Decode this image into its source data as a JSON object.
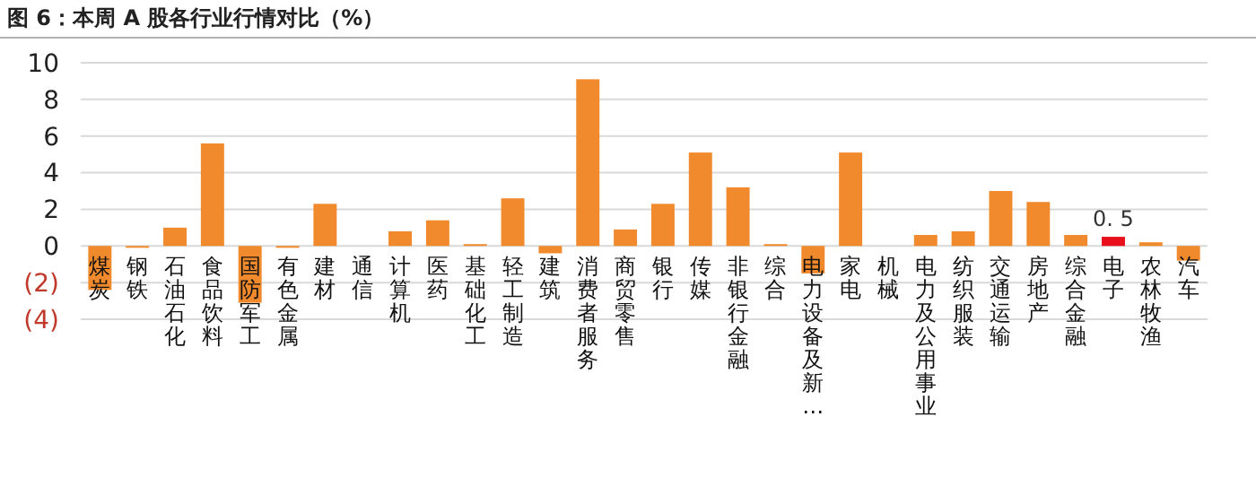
{
  "chart_data": {
    "type": "bar",
    "title": "图 6：本周 A 股各行业行情对比（%）",
    "categories": [
      "煤炭",
      "钢铁",
      "石油石化",
      "食品饮料",
      "国防军工",
      "有色金属",
      "建材",
      "通信",
      "计算机",
      "医药",
      "基础化工",
      "轻工制造",
      "建筑",
      "消费者服务",
      "商贸零售",
      "银行",
      "传媒",
      "非银行金融",
      "综合",
      "电力设备及新…",
      "家电",
      "机械",
      "电力及公用事业",
      "纺织服装",
      "交通运输",
      "房地产",
      "综合金融",
      "电子",
      "农林牧渔",
      "汽车"
    ],
    "values": [
      -2.4,
      -0.1,
      1.0,
      5.6,
      -3.1,
      -0.1,
      2.3,
      0,
      0.8,
      1.4,
      0.1,
      2.6,
      -0.4,
      9.1,
      0.9,
      2.3,
      5.1,
      3.2,
      0.1,
      -1.5,
      5.1,
      0,
      0.6,
      0.8,
      3.0,
      2.4,
      0.6,
      0.5,
      0.2,
      -0.8
    ],
    "colors": [
      "#f08a2c",
      "#f08a2c",
      "#f08a2c",
      "#f08a2c",
      "#f08a2c",
      "#f08a2c",
      "#f08a2c",
      "#f08a2c",
      "#f08a2c",
      "#f08a2c",
      "#f08a2c",
      "#f08a2c",
      "#f08a2c",
      "#f08a2c",
      "#f08a2c",
      "#f08a2c",
      "#f08a2c",
      "#f08a2c",
      "#f08a2c",
      "#f08a2c",
      "#f08a2c",
      "#f08a2c",
      "#f08a2c",
      "#f08a2c",
      "#f08a2c",
      "#f08a2c",
      "#f08a2c",
      "#e8101c",
      "#f08a2c",
      "#f08a2c"
    ],
    "value_labels": [
      null,
      null,
      null,
      null,
      null,
      null,
      null,
      null,
      null,
      null,
      null,
      null,
      null,
      null,
      null,
      null,
      null,
      null,
      null,
      null,
      null,
      null,
      null,
      null,
      null,
      null,
      null,
      "0. 5",
      null,
      null
    ],
    "ylim": [
      -4,
      10
    ],
    "yticks": [
      {
        "value": -4,
        "label": "(4)"
      },
      {
        "value": -2,
        "label": "(2)"
      },
      0,
      2,
      4,
      6,
      8,
      10
    ],
    "grid": "y"
  }
}
